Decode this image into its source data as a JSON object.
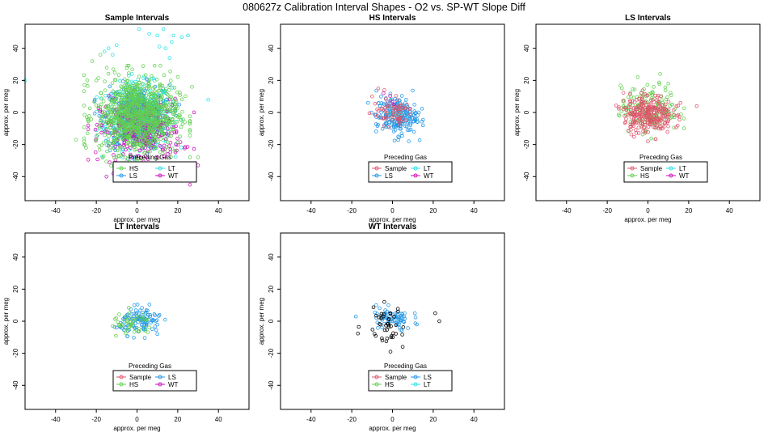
{
  "page_title": "080627z   Calibration Interval Shapes - O2 vs. SP-WT Slope Diff",
  "legend_title": "Preceding Gas",
  "colors": {
    "Sample": "#df536b",
    "HS": "#61d04f",
    "LS": "#2297e6",
    "LT": "#28e2e5",
    "WT": "#cd0bbc",
    "WT_points": "#000000",
    "axis": "#000000"
  },
  "chart_data": [
    {
      "type": "scatter",
      "title": "Sample Intervals",
      "xlabel": "approx. per meg",
      "ylabel": "approx. per meg",
      "xlim": [
        -55,
        55
      ],
      "ylim": [
        -55,
        55
      ],
      "xticks": [
        -40,
        -20,
        0,
        20,
        40
      ],
      "yticks": [
        -40,
        -20,
        0,
        20,
        40
      ],
      "legend_position": "bottom-center",
      "legend_entries": [
        "HS",
        "LT",
        "LS",
        "WT"
      ],
      "series": [
        {
          "name": "LT",
          "color_key": "LT",
          "n": 450,
          "center": [
            1,
            -2
          ],
          "spread": [
            8,
            10
          ],
          "outliers": [
            [
              1,
              52
            ],
            [
              6,
              49
            ],
            [
              10,
              48
            ],
            [
              13,
              52
            ],
            [
              18,
              48
            ],
            [
              22,
              47
            ],
            [
              25,
              48
            ],
            [
              17,
              44
            ],
            [
              14,
              40
            ],
            [
              -10,
              42
            ],
            [
              -14,
              40
            ],
            [
              11,
              41
            ],
            [
              16,
              34
            ],
            [
              -12,
              36
            ],
            [
              -16,
              38
            ],
            [
              -55,
              20
            ],
            [
              35,
              8
            ]
          ]
        },
        {
          "name": "LS",
          "color_key": "LS",
          "n": 350,
          "center": [
            0,
            -3
          ],
          "spread": [
            8,
            10
          ],
          "outliers": []
        },
        {
          "name": "WT",
          "color_key": "WT",
          "n": 300,
          "center": [
            2,
            -12
          ],
          "spread": [
            10,
            10
          ],
          "outliers": [
            [
              26,
              -45
            ],
            [
              -15,
              -40
            ],
            [
              -5,
              -38
            ],
            [
              30,
              -33
            ]
          ]
        },
        {
          "name": "HS",
          "color_key": "HS",
          "n": 900,
          "center": [
            0,
            -2
          ],
          "spread": [
            10,
            12
          ],
          "outliers": [
            [
              -22,
              32
            ],
            [
              -18,
              36
            ],
            [
              27,
              16
            ],
            [
              -30,
              -17
            ],
            [
              -25,
              -22
            ],
            [
              -20,
              20
            ],
            [
              30,
              -28
            ]
          ]
        }
      ]
    },
    {
      "type": "scatter",
      "title": "HS Intervals",
      "xlabel": "approx. per meg",
      "ylabel": "approx. per meg",
      "xlim": [
        -55,
        55
      ],
      "ylim": [
        -55,
        55
      ],
      "xticks": [
        -40,
        -20,
        0,
        20,
        40
      ],
      "yticks": [
        -40,
        -20,
        0,
        20,
        40
      ],
      "legend_position": "bottom-center",
      "legend_entries": [
        "Sample",
        "LT",
        "LS",
        "WT"
      ],
      "series": [
        {
          "name": "LS",
          "color_key": "LS",
          "n": 220,
          "center": [
            2,
            -2
          ],
          "spread": [
            5,
            6
          ],
          "outliers": [
            [
              -12,
              6
            ],
            [
              8,
              -18
            ],
            [
              13,
              0
            ]
          ]
        },
        {
          "name": "Sample",
          "color_key": "Sample",
          "n": 70,
          "center": [
            0,
            0
          ],
          "spread": [
            5,
            4
          ],
          "outliers": [
            [
              -7,
              15
            ],
            [
              -4,
              14
            ],
            [
              -10,
              10
            ]
          ]
        },
        {
          "name": "LT",
          "color_key": "LT",
          "n": 5,
          "center": [
            0,
            2
          ],
          "spread": [
            3,
            3
          ],
          "outliers": []
        },
        {
          "name": "WT",
          "color_key": "WT",
          "n": 4,
          "center": [
            -4,
            10
          ],
          "spread": [
            3,
            3
          ],
          "outliers": []
        }
      ]
    },
    {
      "type": "scatter",
      "title": "LS Intervals",
      "xlabel": "approx. per meg",
      "ylabel": "approx. per meg",
      "xlim": [
        -55,
        55
      ],
      "ylim": [
        -55,
        55
      ],
      "xticks": [
        -40,
        -20,
        0,
        20,
        40
      ],
      "yticks": [
        -40,
        -20,
        0,
        20,
        40
      ],
      "legend_position": "bottom-center",
      "legend_entries": [
        "Sample",
        "LT",
        "HS",
        "WT"
      ],
      "series": [
        {
          "name": "HS",
          "color_key": "HS",
          "n": 170,
          "center": [
            1,
            2
          ],
          "spread": [
            7,
            7
          ],
          "outliers": [
            [
              6,
              24
            ],
            [
              -5,
              22
            ],
            [
              10,
              18
            ],
            [
              -12,
              4
            ],
            [
              -14,
              -2
            ]
          ]
        },
        {
          "name": "Sample",
          "color_key": "Sample",
          "n": 260,
          "center": [
            0,
            -1
          ],
          "spread": [
            6,
            6
          ],
          "outliers": [
            [
              -12,
              2
            ],
            [
              14,
              4
            ],
            [
              24,
              4
            ],
            [
              16,
              6
            ],
            [
              -11,
              -6
            ],
            [
              0,
              -18
            ]
          ]
        }
      ]
    },
    {
      "type": "scatter",
      "title": "LT Intervals",
      "xlabel": "approx. per meg",
      "ylabel": "approx. per meg",
      "xlim": [
        -55,
        55
      ],
      "ylim": [
        -55,
        55
      ],
      "xticks": [
        -40,
        -20,
        0,
        20,
        40
      ],
      "yticks": [
        -40,
        -20,
        0,
        20,
        40
      ],
      "legend_position": "bottom-center",
      "legend_entries": [
        "Sample",
        "LS",
        "HS",
        "WT"
      ],
      "series": [
        {
          "name": "LS",
          "color_key": "LS",
          "n": 110,
          "center": [
            2,
            0
          ],
          "spread": [
            5,
            4
          ],
          "outliers": [
            [
              -10,
              -4
            ],
            [
              11,
              4
            ],
            [
              10,
              -8
            ]
          ]
        },
        {
          "name": "HS",
          "color_key": "HS",
          "n": 45,
          "center": [
            -2,
            -2
          ],
          "spread": [
            5,
            4
          ],
          "outliers": [
            [
              -12,
              -3
            ]
          ]
        }
      ]
    },
    {
      "type": "scatter",
      "title": "WT Intervals",
      "xlabel": "approx. per meg",
      "ylabel": "approx. per meg",
      "xlim": [
        -55,
        55
      ],
      "ylim": [
        -55,
        55
      ],
      "xticks": [
        -40,
        -20,
        0,
        20,
        40
      ],
      "yticks": [
        -40,
        -20,
        0,
        20,
        40
      ],
      "legend_position": "bottom-center",
      "legend_entries": [
        "Sample",
        "LS",
        "HS",
        "LT"
      ],
      "series": [
        {
          "name": "LS",
          "color_key": "LS",
          "n": 70,
          "center": [
            0,
            1
          ],
          "spread": [
            5,
            3.5
          ],
          "outliers": [
            [
              -18,
              3
            ],
            [
              -8,
              10
            ],
            [
              11,
              5
            ],
            [
              12,
              -2
            ]
          ]
        },
        {
          "name": "WT",
          "color_key": "WT_points",
          "n": 40,
          "center": [
            -4,
            -2
          ],
          "spread": [
            5,
            5
          ],
          "outliers": [
            [
              21,
              5
            ],
            [
              23,
              0
            ],
            [
              -1,
              -19
            ],
            [
              5,
              -16
            ],
            [
              -5,
              -12
            ],
            [
              -4,
              12
            ]
          ]
        }
      ]
    }
  ]
}
